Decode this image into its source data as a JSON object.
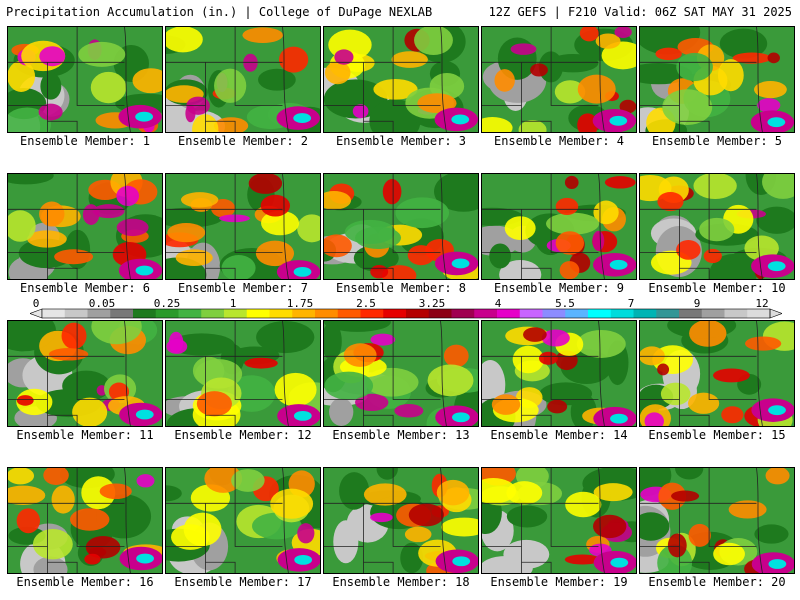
{
  "header": {
    "left": "Precipitation Accumulation (in.) | College of DuPage NEXLAB",
    "right": "12Z GEFS | F210 Valid: 06Z SAT MAY 31 2025"
  },
  "members": [
    "Ensemble Member: 1",
    "Ensemble Member: 2",
    "Ensemble Member: 3",
    "Ensemble Member: 4",
    "Ensemble Member: 5",
    "Ensemble Member: 6",
    "Ensemble Member: 7",
    "Ensemble Member: 8",
    "Ensemble Member: 9",
    "Ensemble Member: 10",
    "Ensemble Member: 11",
    "Ensemble Member: 12",
    "Ensemble Member: 13",
    "Ensemble Member: 14",
    "Ensemble Member: 15",
    "Ensemble Member: 16",
    "Ensemble Member: 17",
    "Ensemble Member: 18",
    "Ensemble Member: 19",
    "Ensemble Member: 20"
  ],
  "colorbar": {
    "labels": [
      "0",
      "0.05",
      "0.25",
      "1",
      "1.75",
      "2.5",
      "3.25",
      "4",
      "5.5",
      "7",
      "9",
      "12"
    ],
    "colors": [
      "#e6e6e6",
      "#c8c8c8",
      "#a0a0a0",
      "#787878",
      "#1e7a1e",
      "#2a9a2a",
      "#43b343",
      "#7fcf3f",
      "#b8e62e",
      "#ffff00",
      "#ffdc00",
      "#ffb400",
      "#ff8c00",
      "#ff5a00",
      "#ff2800",
      "#e60000",
      "#b40000",
      "#8c0014",
      "#a00050",
      "#c8008c",
      "#e600c8",
      "#c864ff",
      "#8c8cff",
      "#5ab4ff",
      "#00ffff",
      "#00dcdc",
      "#00b4b4",
      "#329696",
      "#787878",
      "#a0a0a0",
      "#c8c8c8",
      "#dcdcdc"
    ]
  }
}
